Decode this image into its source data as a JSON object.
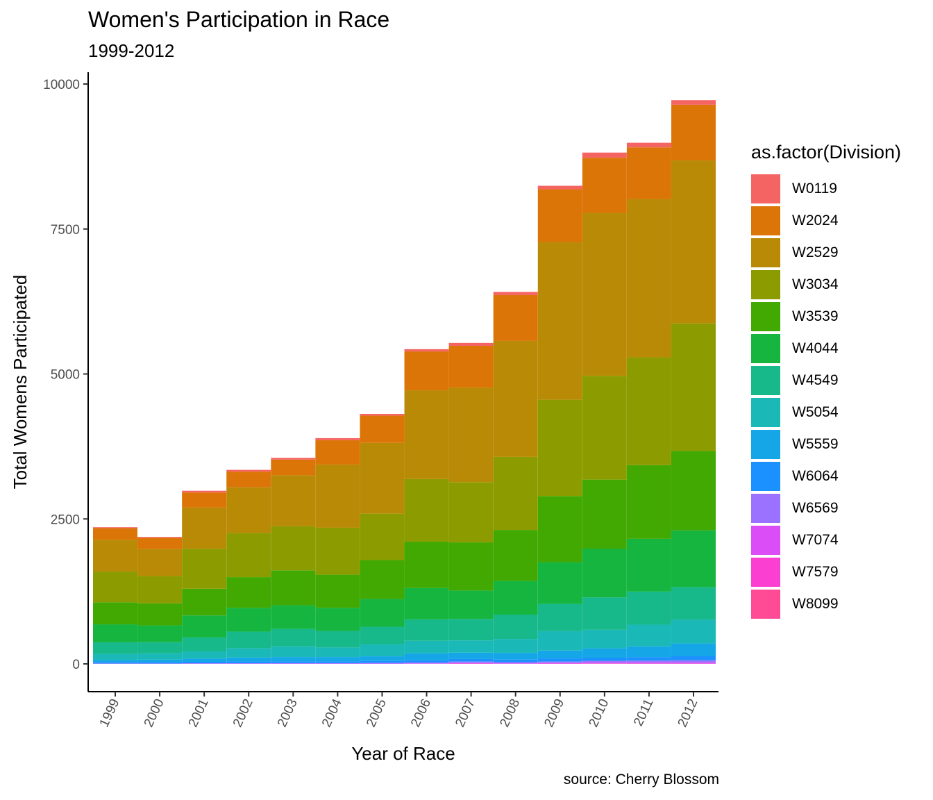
{
  "chart_data": {
    "type": "bar",
    "stacked": true,
    "title": "Women's Participation in Race",
    "subtitle": "1999-2012",
    "xlabel": "Year of Race",
    "ylabel": "Total Womens Participated",
    "caption": "source: Cherry Blossom",
    "legend_title": "as.factor(Division)",
    "legend_position": "right",
    "grid": false,
    "ylim": [
      -480,
      10200
    ],
    "yticks": [
      0,
      2500,
      5000,
      7500,
      10000
    ],
    "categories": [
      "1999",
      "2000",
      "2001",
      "2002",
      "2003",
      "2004",
      "2005",
      "2006",
      "2007",
      "2008",
      "2009",
      "2010",
      "2011",
      "2012"
    ],
    "series": [
      {
        "name": "W8099",
        "color": "#FF4B96",
        "values": [
          0,
          0,
          0,
          0,
          0,
          0,
          0,
          0,
          2,
          0,
          2,
          3,
          2,
          2
        ]
      },
      {
        "name": "W7579",
        "color": "#FB3FD1",
        "values": [
          0,
          0,
          0,
          0,
          0,
          0,
          0,
          2,
          3,
          2,
          3,
          5,
          5,
          5
        ]
      },
      {
        "name": "W7074",
        "color": "#DB4DF6",
        "values": [
          2,
          2,
          3,
          3,
          3,
          3,
          4,
          6,
          10,
          8,
          10,
          15,
          15,
          15
        ]
      },
      {
        "name": "W6569",
        "color": "#9A72FF",
        "values": [
          5,
          5,
          8,
          8,
          10,
          10,
          12,
          15,
          25,
          20,
          25,
          30,
          35,
          40
        ]
      },
      {
        "name": "W6064",
        "color": "#1B90FF",
        "values": [
          20,
          22,
          25,
          30,
          30,
          30,
          35,
          40,
          45,
          45,
          55,
          55,
          60,
          70
        ]
      },
      {
        "name": "W5559",
        "color": "#14A6E6",
        "values": [
          40,
          45,
          55,
          70,
          75,
          75,
          80,
          120,
          110,
          115,
          135,
          160,
          185,
          220
        ]
      },
      {
        "name": "W5054",
        "color": "#1BB8B8",
        "values": [
          105,
          110,
          125,
          160,
          185,
          165,
          210,
          215,
          210,
          240,
          335,
          320,
          375,
          410
        ]
      },
      {
        "name": "W4549",
        "color": "#17B88A",
        "values": [
          200,
          190,
          240,
          285,
          300,
          285,
          300,
          370,
          370,
          420,
          470,
          560,
          570,
          560
        ]
      },
      {
        "name": "W4044",
        "color": "#16B53F",
        "values": [
          310,
          290,
          380,
          410,
          410,
          400,
          480,
          540,
          490,
          580,
          720,
          840,
          910,
          980
        ]
      },
      {
        "name": "W3539",
        "color": "#42A802",
        "values": [
          380,
          380,
          460,
          530,
          600,
          570,
          670,
          800,
          830,
          880,
          1140,
          1190,
          1270,
          1370
        ]
      },
      {
        "name": "W3034",
        "color": "#8C9C00",
        "values": [
          530,
          470,
          690,
          760,
          760,
          810,
          800,
          1080,
          1040,
          1260,
          1660,
          1790,
          1860,
          2200
        ]
      },
      {
        "name": "W2529",
        "color": "#B88A05",
        "values": [
          550,
          470,
          710,
          790,
          880,
          1090,
          1220,
          1530,
          1630,
          2000,
          2720,
          2810,
          2730,
          2810
        ]
      },
      {
        "name": "W2024",
        "color": "#DC7508",
        "values": [
          200,
          190,
          260,
          270,
          270,
          420,
          470,
          670,
          720,
          790,
          910,
          950,
          890,
          960
        ]
      },
      {
        "name": "W0119",
        "color": "#F46462",
        "values": [
          15,
          15,
          30,
          30,
          30,
          35,
          30,
          40,
          50,
          55,
          60,
          90,
          80,
          80
        ]
      }
    ]
  }
}
